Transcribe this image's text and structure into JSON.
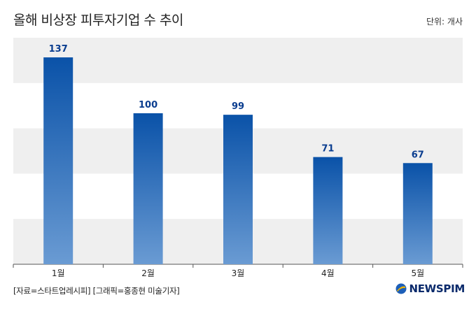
{
  "title": "올해 비상장 피투자기업 수 추이",
  "unit_label": "단위: 개사",
  "source_text": "[자료=스타트업레시피] [그래픽=홍종현 미술기자]",
  "logo_text": "NEWSPIM",
  "colors": {
    "bar_top": "#0a52a8",
    "bar_bottom": "#6a9bd3",
    "value_label": "#0a3d8f",
    "band": "#efefef",
    "logo_blue": "#1d5fb8",
    "logo_gold": "#f0b400"
  },
  "chart_data": {
    "type": "bar",
    "categories": [
      "1월",
      "2월",
      "3월",
      "4월",
      "5월"
    ],
    "values": [
      137,
      100,
      99,
      71,
      67
    ],
    "title": "올해 비상장 피투자기업 수 추이",
    "xlabel": "",
    "ylabel": "",
    "ylim": [
      0,
      150
    ],
    "grid": "alternating horizontal bands",
    "legend": "none"
  }
}
